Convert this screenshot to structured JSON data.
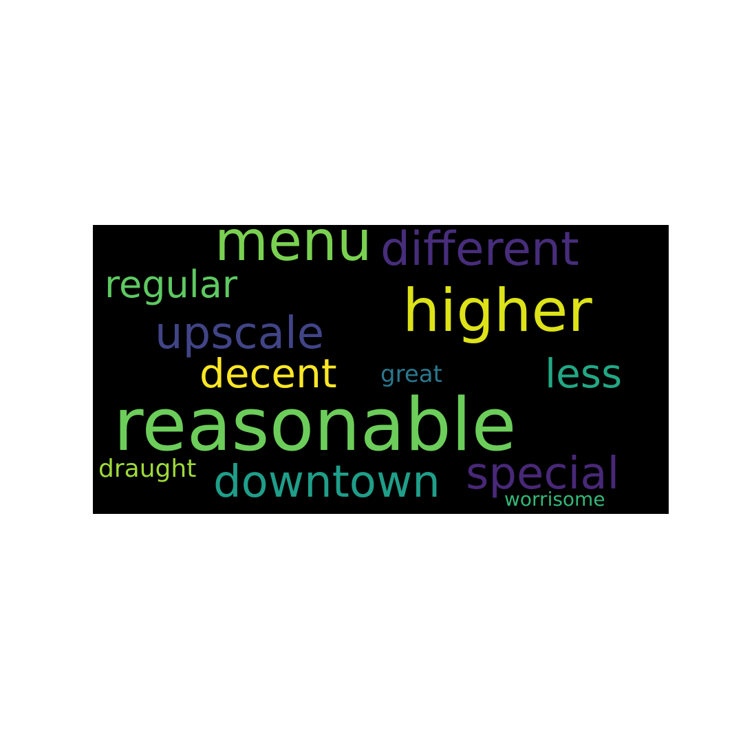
{
  "wordcloud": {
    "background": "#000000",
    "words": [
      {
        "text": "reasonable",
        "color": "#6ccd5a"
      },
      {
        "text": "menu",
        "color": "#7ad151"
      },
      {
        "text": "different",
        "color": "#472d7b"
      },
      {
        "text": "higher",
        "color": "#dde318"
      },
      {
        "text": "regular",
        "color": "#5ec962"
      },
      {
        "text": "upscale",
        "color": "#414487"
      },
      {
        "text": "decent",
        "color": "#fde725"
      },
      {
        "text": "less",
        "color": "#22a884"
      },
      {
        "text": "great",
        "color": "#2a788e"
      },
      {
        "text": "downtown",
        "color": "#1f9e89"
      },
      {
        "text": "special",
        "color": "#482878"
      },
      {
        "text": "draught",
        "color": "#a0da39"
      },
      {
        "text": "worrisome",
        "color": "#35b779"
      }
    ]
  }
}
